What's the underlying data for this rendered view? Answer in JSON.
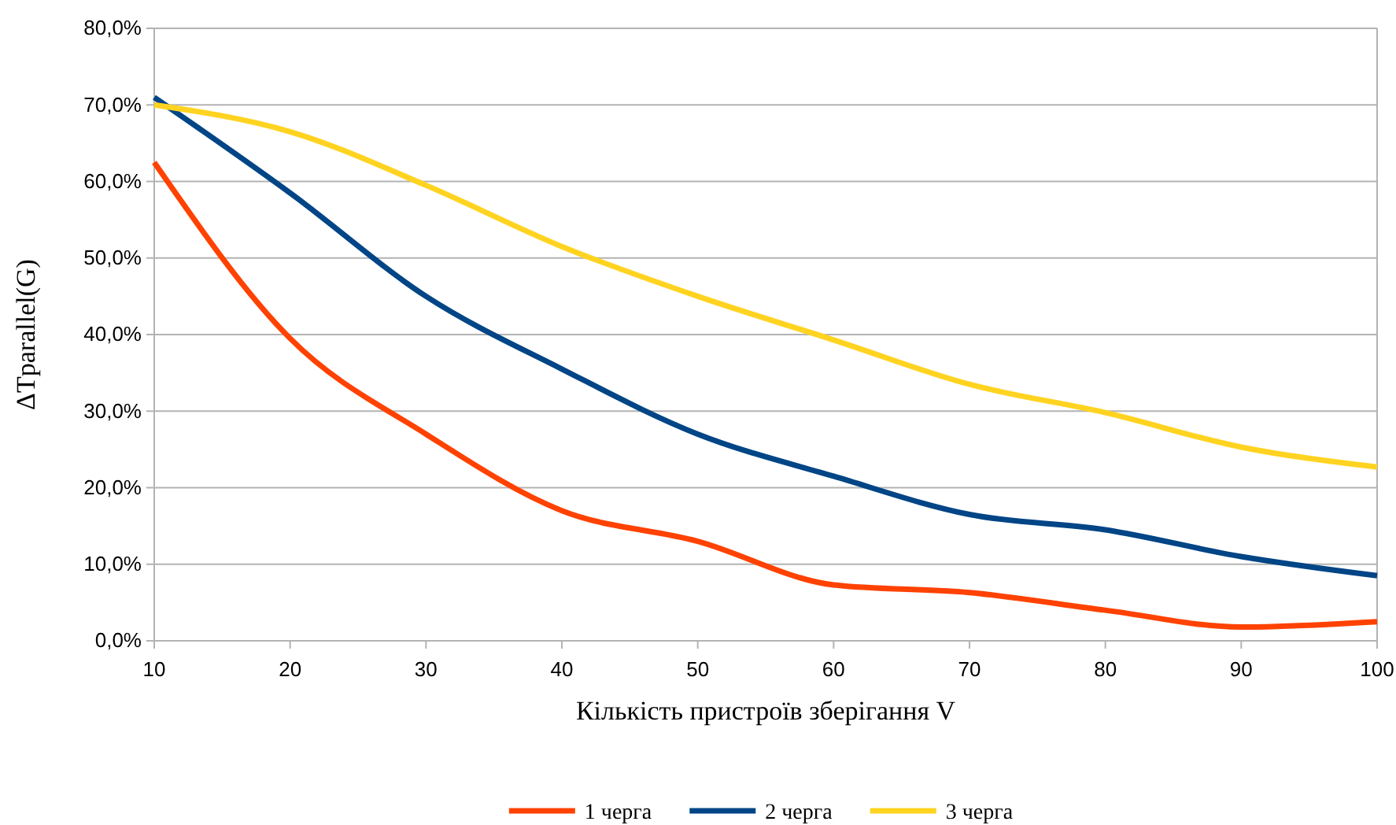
{
  "chart_data": {
    "type": "line",
    "xlabel": "Кількість пристроїв зберігання V",
    "ylabel": "ΔTparallel(G)",
    "x": [
      10,
      20,
      30,
      40,
      50,
      60,
      70,
      80,
      90,
      100
    ],
    "series": [
      {
        "name": "1 черга",
        "color": "#ff4200",
        "values": [
          62.5,
          39.5,
          27,
          17,
          13,
          7.3,
          6.3,
          4,
          1.8,
          2.5
        ]
      },
      {
        "name": "2 черга",
        "color": "#004586",
        "values": [
          71,
          58.5,
          45,
          35.5,
          27,
          21.5,
          16.5,
          14.5,
          11,
          8.5
        ]
      },
      {
        "name": "3 черга",
        "color": "#ffd320",
        "values": [
          70,
          66.5,
          59.5,
          51.5,
          45,
          39.3,
          33.5,
          29.8,
          25.3,
          22.7
        ]
      }
    ],
    "xlim": [
      10,
      100
    ],
    "xticks": [
      10,
      20,
      30,
      40,
      50,
      60,
      70,
      80,
      90,
      100
    ],
    "ylim": [
      0,
      80
    ],
    "yticks": [
      {
        "value": 0,
        "label": "0,0%"
      },
      {
        "value": 10,
        "label": "10,0%"
      },
      {
        "value": 20,
        "label": "20,0%"
      },
      {
        "value": 30,
        "label": "30,0%"
      },
      {
        "value": 40,
        "label": "40,0%"
      },
      {
        "value": 50,
        "label": "50,0%"
      },
      {
        "value": 60,
        "label": "60,0%"
      },
      {
        "value": 70,
        "label": "70,0%"
      },
      {
        "value": 80,
        "label": "80,0%"
      }
    ],
    "grid": "y",
    "legend": "bottom",
    "marker": "none",
    "line_style": "solid"
  }
}
